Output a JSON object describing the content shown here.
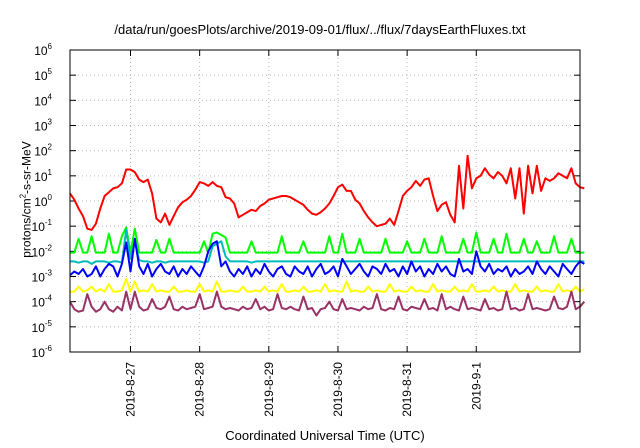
{
  "chart_data": {
    "type": "line",
    "title": "/data/run/goesPlots/archive/2019-09-01/flux/../flux/7daysEarthFluxes.txt",
    "xlabel": "Coordinated Universal Time (UTC)",
    "ylabel": {
      "pre": "protons/cm",
      "sup": "2",
      "post": "-s-sr-MeV"
    },
    "yscale": "log",
    "ylim": [
      1e-06,
      1000000.0
    ],
    "xlim": [
      "2019-08-26 03:00",
      "2019-09-02 12:00"
    ],
    "ytick_exponents": [
      -6,
      -5,
      -4,
      -3,
      -2,
      -1,
      0,
      1,
      2,
      3,
      4,
      5,
      6
    ],
    "ytick_base": "10",
    "xticks": [
      {
        "label": "2019-8-27",
        "t": "2019-08-27 00:00"
      },
      {
        "label": "2019-8-28",
        "t": "2019-08-28 00:00"
      },
      {
        "label": "2019-8-29",
        "t": "2019-08-29 00:00"
      },
      {
        "label": "2019-8-30",
        "t": "2019-08-30 00:00"
      },
      {
        "label": "2019-8-31",
        "t": "2019-08-31 00:00"
      },
      {
        "label": "2019-9-1",
        "t": "2019-09-01 00:00"
      }
    ],
    "grid": true,
    "x_start": "2019-08-26 03:00",
    "x_step_hours": 1.5,
    "series": [
      {
        "color": "#ff0000",
        "log10_values": [
          0.3,
          0.05,
          -0.3,
          -0.6,
          -1.1,
          -1.15,
          -0.9,
          -0.3,
          0.2,
          0.35,
          0.5,
          0.55,
          0.7,
          1.25,
          1.25,
          1.15,
          0.85,
          0.75,
          0.85,
          0.3,
          -0.7,
          -0.85,
          -0.5,
          -0.95,
          -0.6,
          -0.25,
          -0.05,
          0.05,
          0.2,
          0.45,
          0.75,
          0.7,
          0.6,
          0.75,
          0.6,
          0.55,
          0.15,
          0.1,
          -0.1,
          -0.65,
          -0.55,
          -0.45,
          -0.35,
          -0.4,
          -0.2,
          -0.1,
          0.05,
          0.1,
          0.15,
          0.2,
          0.2,
          0.15,
          0.05,
          -0.05,
          -0.15,
          -0.35,
          -0.5,
          -0.55,
          -0.45,
          -0.3,
          -0.1,
          0.2,
          0.55,
          0.65,
          0.4,
          0.4,
          0.05,
          -0.1,
          -0.4,
          -0.65,
          -0.85,
          -1.0,
          -0.95,
          -0.9,
          -0.7,
          -0.95,
          -0.4,
          0.2,
          0.4,
          0.55,
          0.8,
          0.6,
          0.85,
          0.9,
          0.2,
          -0.4,
          -0.15,
          -0.05,
          -0.55,
          -0.85,
          1.4,
          -0.3,
          1.8,
          0.5,
          0.9,
          1.0,
          1.3,
          1.05,
          0.9,
          1.15,
          1.0,
          0.7,
          1.3,
          0.1,
          1.3,
          -0.5,
          1.4,
          0.3,
          1.4,
          0.4,
          0.9,
          0.8,
          0.9,
          1.1,
          1.0,
          0.9,
          1.3,
          0.7,
          0.55,
          0.5
        ]
      },
      {
        "color": "#00ff00",
        "log10_values": [
          -2.05,
          -2.05,
          -1.5,
          -2.05,
          -2.05,
          -1.4,
          -2.05,
          -2.05,
          -2.05,
          -1.3,
          -2.05,
          -2.05,
          -1.4,
          -1.05,
          -2.05,
          -1.1,
          -2.05,
          -2.05,
          -2.05,
          -2.05,
          -1.55,
          -2.05,
          -2.05,
          -1.5,
          -2.05,
          -2.05,
          -2.05,
          -2.05,
          -2.05,
          -2.05,
          -2.05,
          -1.6,
          -2.05,
          -1.3,
          -1.25,
          -1.35,
          -1.45,
          -2.05,
          -2.05,
          -2.05,
          -2.05,
          -2.05,
          -1.6,
          -2.05,
          -2.05,
          -2.05,
          -2.05,
          -2.05,
          -2.05,
          -1.4,
          -2.05,
          -2.05,
          -2.05,
          -2.05,
          -1.6,
          -2.05,
          -2.05,
          -2.05,
          -2.05,
          -2.05,
          -1.4,
          -2.05,
          -2.05,
          -1.3,
          -2.05,
          -2.05,
          -2.05,
          -1.5,
          -2.05,
          -2.05,
          -2.05,
          -2.05,
          -2.05,
          -1.5,
          -2.05,
          -2.05,
          -2.05,
          -2.05,
          -1.6,
          -2.05,
          -2.05,
          -2.05,
          -1.5,
          -2.05,
          -2.05,
          -2.05,
          -1.4,
          -2.05,
          -2.05,
          -2.05,
          -2.05,
          -1.5,
          -2.05,
          -2.05,
          -1.25,
          -2.05,
          -2.05,
          -2.05,
          -1.5,
          -2.05,
          -2.05,
          -1.3,
          -2.05,
          -2.05,
          -2.05,
          -1.5,
          -2.05,
          -2.05,
          -1.6,
          -2.05,
          -2.05,
          -2.05,
          -1.4,
          -2.05,
          -2.05,
          -2.05,
          -1.5,
          -2.05,
          -2.05,
          -2.05
        ]
      },
      {
        "color": "#00bbbb",
        "log10_values": [
          -2.4,
          -2.4,
          -2.45,
          -2.4,
          -2.4,
          -2.5,
          -2.4,
          -2.4,
          -2.4,
          -2.45,
          -2.4,
          -2.4,
          -2.45,
          -1.15,
          -2.3,
          -1.6,
          -2.35,
          -2.4,
          -2.4,
          -2.45,
          -2.4,
          -2.4,
          -2.45,
          -2.4,
          -2.4,
          -2.4,
          -2.4,
          -2.4,
          -2.4,
          -2.4,
          -2.4,
          -2.45,
          -2.4,
          -1.8,
          -1.7,
          -1.6,
          -2.2,
          -2.4,
          -2.4,
          -2.4,
          -2.4,
          -2.4,
          -2.45,
          -2.4,
          -2.4,
          -2.4,
          -2.4,
          -2.4,
          -2.4,
          -2.4,
          -2.4,
          -2.4,
          -2.4,
          -2.4,
          -2.4,
          -2.4,
          -2.4,
          -2.4,
          -2.4,
          -2.4,
          -2.4,
          -2.4,
          -2.4,
          -2.4,
          -2.4,
          -2.4,
          -2.4,
          -2.4,
          -2.4,
          -2.4,
          -2.4,
          -2.4,
          -2.4,
          -2.4,
          -2.4,
          -2.4,
          -2.4,
          -2.4,
          -2.4,
          -2.4,
          -2.4,
          -2.4,
          -2.4,
          -2.4,
          -2.4,
          -2.4,
          -2.4,
          -2.4,
          -2.4,
          -2.4,
          -2.4,
          -2.4,
          -2.4,
          -2.4,
          -2.4,
          -2.4,
          -2.4,
          -2.4,
          -2.4,
          -2.4,
          -2.4,
          -2.4,
          -2.4,
          -2.4,
          -2.4,
          -2.4,
          -2.4,
          -2.4,
          -2.4,
          -2.4,
          -2.4,
          -2.4,
          -2.4,
          -2.4,
          -2.4,
          -2.4,
          -2.4,
          -2.4,
          -2.4,
          -2.4
        ]
      },
      {
        "color": "#0000ff",
        "log10_values": [
          -2.95,
          -2.8,
          -2.9,
          -2.7,
          -3.0,
          -2.9,
          -2.6,
          -3.0,
          -2.7,
          -2.5,
          -2.6,
          -3.0,
          -2.5,
          -1.65,
          -2.8,
          -1.5,
          -2.6,
          -2.9,
          -2.5,
          -3.0,
          -2.7,
          -2.5,
          -2.8,
          -2.9,
          -2.6,
          -3.0,
          -2.7,
          -2.9,
          -2.6,
          -2.8,
          -3.0,
          -2.6,
          -2.0,
          -1.7,
          -1.6,
          -2.6,
          -2.4,
          -2.8,
          -3.0,
          -2.7,
          -2.9,
          -2.6,
          -3.0,
          -2.7,
          -2.9,
          -2.5,
          -2.8,
          -3.0,
          -2.7,
          -2.6,
          -2.9,
          -3.0,
          -2.6,
          -2.8,
          -2.9,
          -2.6,
          -3.0,
          -2.7,
          -2.5,
          -2.9,
          -2.8,
          -2.6,
          -3.0,
          -2.3,
          -2.6,
          -2.9,
          -2.7,
          -2.5,
          -2.8,
          -3.0,
          -2.6,
          -2.7,
          -2.9,
          -2.5,
          -2.8,
          -2.7,
          -3.0,
          -2.6,
          -2.9,
          -2.4,
          -2.8,
          -2.6,
          -3.0,
          -2.7,
          -2.9,
          -2.5,
          -2.8,
          -2.6,
          -2.9,
          -3.0,
          -2.3,
          -2.8,
          -2.7,
          -2.9,
          -2.0,
          -2.6,
          -2.8,
          -2.5,
          -2.9,
          -2.7,
          -2.8,
          -2.6,
          -3.0,
          -2.7,
          -2.9,
          -2.8,
          -2.6,
          -2.9,
          -2.4,
          -2.7,
          -2.9,
          -2.6,
          -2.8,
          -3.0,
          -2.5,
          -2.7,
          -2.9,
          -2.6,
          -2.4,
          -2.5
        ]
      },
      {
        "color": "#ffff00",
        "log10_values": [
          -3.6,
          -3.6,
          -3.4,
          -3.6,
          -3.55,
          -3.4,
          -3.6,
          -3.5,
          -3.6,
          -3.3,
          -3.6,
          -3.6,
          -3.55,
          -3.1,
          -3.6,
          -3.2,
          -3.6,
          -3.55,
          -3.6,
          -3.3,
          -3.6,
          -3.55,
          -3.6,
          -3.6,
          -3.4,
          -3.6,
          -3.6,
          -3.55,
          -3.6,
          -3.6,
          -3.3,
          -3.6,
          -3.55,
          -3.6,
          -3.2,
          -3.6,
          -3.6,
          -3.55,
          -3.6,
          -3.6,
          -3.4,
          -3.6,
          -3.6,
          -3.55,
          -3.6,
          -3.4,
          -3.6,
          -3.55,
          -3.6,
          -3.3,
          -3.6,
          -3.6,
          -3.55,
          -3.6,
          -3.4,
          -3.6,
          -3.6,
          -3.55,
          -3.6,
          -3.3,
          -3.6,
          -3.55,
          -3.6,
          -3.6,
          -3.2,
          -3.6,
          -3.55,
          -3.6,
          -3.6,
          -3.4,
          -3.6,
          -3.55,
          -3.6,
          -3.6,
          -3.3,
          -3.6,
          -3.55,
          -3.6,
          -3.6,
          -3.4,
          -3.6,
          -3.55,
          -3.6,
          -3.6,
          -3.3,
          -3.6,
          -3.55,
          -3.6,
          -3.6,
          -3.4,
          -3.6,
          -3.55,
          -3.6,
          -3.3,
          -3.6,
          -3.6,
          -3.55,
          -3.6,
          -3.4,
          -3.6,
          -3.55,
          -3.6,
          -3.6,
          -3.3,
          -3.6,
          -3.55,
          -3.6,
          -3.6,
          -3.4,
          -3.6,
          -3.55,
          -3.6,
          -3.6,
          -3.3,
          -3.6,
          -3.55,
          -3.6,
          -3.4,
          -3.6,
          -3.5
        ]
      },
      {
        "color": "#993366",
        "log10_values": [
          -4.0,
          -4.3,
          -4.4,
          -4.35,
          -3.7,
          -4.2,
          -4.4,
          -4.3,
          -4.0,
          -4.3,
          -4.4,
          -4.2,
          -4.35,
          -3.6,
          -4.3,
          -3.6,
          -4.2,
          -4.35,
          -4.3,
          -3.9,
          -4.25,
          -4.3,
          -4.2,
          -3.8,
          -4.3,
          -4.35,
          -4.2,
          -4.3,
          -4.25,
          -4.2,
          -3.7,
          -4.3,
          -4.25,
          -4.2,
          -3.6,
          -4.2,
          -4.3,
          -4.25,
          -4.3,
          -4.35,
          -4.2,
          -4.3,
          -4.25,
          -3.9,
          -4.3,
          -4.2,
          -4.35,
          -4.3,
          -3.7,
          -4.25,
          -4.3,
          -4.2,
          -4.3,
          -4.35,
          -3.8,
          -4.3,
          -4.25,
          -4.55,
          -4.3,
          -4.25,
          -4.0,
          -4.3,
          -4.35,
          -3.9,
          -4.3,
          -4.25,
          -4.3,
          -4.35,
          -4.2,
          -4.3,
          -4.25,
          -3.7,
          -4.3,
          -4.35,
          -4.25,
          -4.3,
          -3.8,
          -4.3,
          -4.35,
          -4.2,
          -4.25,
          -4.3,
          -3.9,
          -4.3,
          -4.25,
          -4.35,
          -3.7,
          -4.3,
          -4.2,
          -4.3,
          -4.35,
          -3.8,
          -4.3,
          -4.25,
          -4.3,
          -4.35,
          -3.9,
          -4.3,
          -4.25,
          -4.35,
          -4.3,
          -3.6,
          -4.3,
          -4.25,
          -4.35,
          -4.3,
          -3.7,
          -4.3,
          -4.25,
          -4.3,
          -4.35,
          -4.3,
          -3.8,
          -4.25,
          -4.3,
          -4.2,
          -3.6,
          -4.3,
          -4.2,
          -4.0
        ]
      }
    ]
  }
}
